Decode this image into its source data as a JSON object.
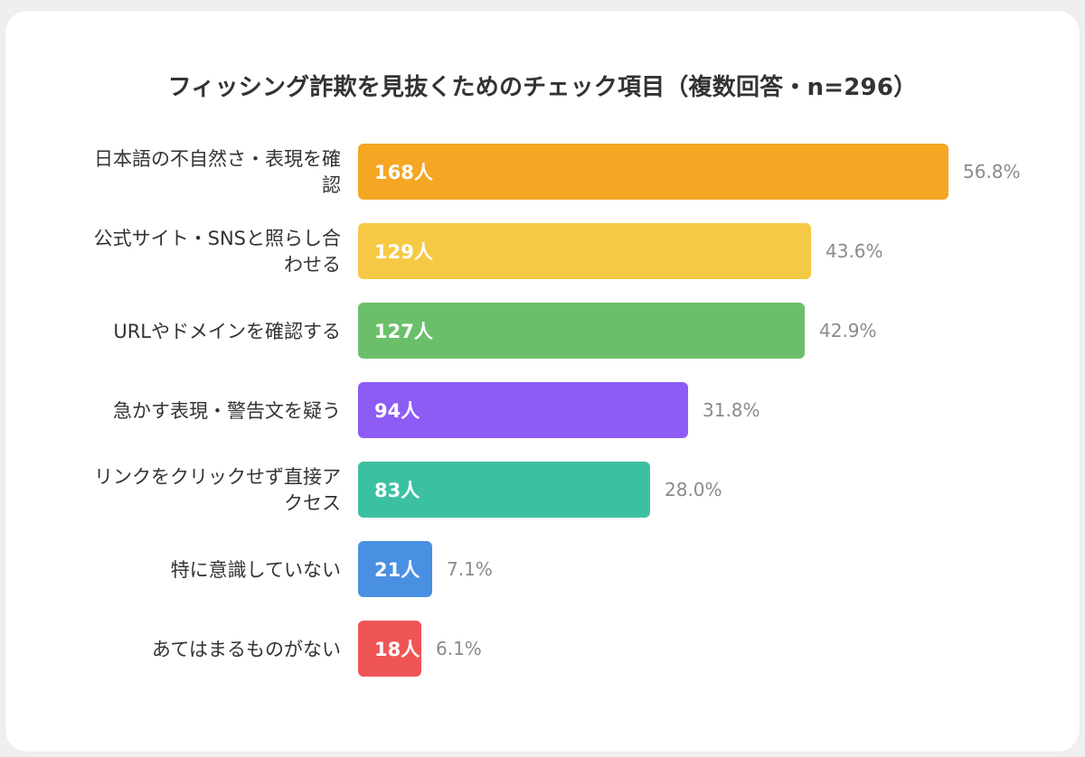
{
  "chart_data": {
    "type": "bar",
    "orientation": "horizontal",
    "title": "フィッシング詐欺を見抜くためのチェック項目（複数回答・n=296）",
    "categories": [
      "日本語の不自然さ・表現を確認",
      "公式サイト・SNSと照らし合わせる",
      "URLやドメインを確認する",
      "急かす表現・警告文を疑う",
      "リンクをクリックせず直接アクセス",
      "特に意識していない",
      "あてはまるものがない"
    ],
    "category_lines": [
      [
        "日本語の不自然さ・表現を確",
        "認"
      ],
      [
        "公式サイト・SNSと照らし合",
        "わせる"
      ],
      [
        "URLやドメインを確認する"
      ],
      [
        "急かす表現・警告文を疑う"
      ],
      [
        "リンクをクリックせず直接ア",
        "クセス"
      ],
      [
        "特に意識していない"
      ],
      [
        "あてはまるものがない"
      ]
    ],
    "values": [
      168,
      129,
      127,
      94,
      83,
      21,
      18
    ],
    "value_labels": [
      "168人",
      "129人",
      "127人",
      "94人",
      "83人",
      "21人",
      "18人"
    ],
    "percent_labels": [
      "56.8%",
      "43.6%",
      "42.9%",
      "31.8%",
      "28.0%",
      "7.1%",
      "6.1%"
    ],
    "colors": [
      "#f5a623",
      "#f6c945",
      "#6cbf6a",
      "#8c5cf5",
      "#3cc0a2",
      "#4a90e2",
      "#f05556"
    ],
    "xlim": [
      0,
      168
    ],
    "grid": false,
    "legend": "none"
  }
}
